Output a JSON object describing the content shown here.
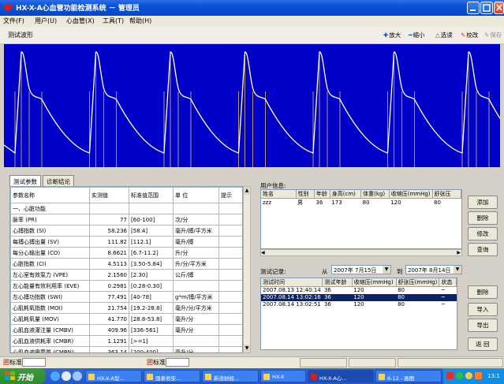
{
  "window": {
    "title": "HX-X-A心血管功能检测系统 － 管理员"
  },
  "menu": [
    "文件(F)",
    "用户(U)",
    "心血管(X)",
    "工具(T)",
    "帮助(H)"
  ],
  "toolbar": {
    "label": "测试波形",
    "zoom_in": "放大",
    "zoom_out": "缩小",
    "select": "选读",
    "calibrate": "校改",
    "save": "保存"
  },
  "colors": {
    "wave_background": "#0000c8",
    "wave_line": "#ffffff",
    "marker_line": "#ffd84a",
    "selection": "#0a246a",
    "titlebar": "#0a4fd6",
    "taskbar": "#2457ca"
  },
  "tabs": [
    "测试参数",
    "诊断结论"
  ],
  "params": {
    "headers": [
      "参数名称",
      "实测值",
      "标准值范围",
      "单 位",
      "提示"
    ],
    "rows": [
      {
        "name": "一、心脏功能",
        "value": "",
        "range": "",
        "unit": "",
        "hint": ""
      },
      {
        "name": "脉率 (PR)",
        "value": "77",
        "range": "[60-100]",
        "unit": "次/分",
        "hint": ""
      },
      {
        "name": "心搏指数 (SI)",
        "value": "58.236",
        "range": "[58.4]",
        "unit": "毫升/搏/平方米",
        "hint": ""
      },
      {
        "name": "每搏心搏出量 (SV)",
        "value": "111.82",
        "range": "[112.1]",
        "unit": "毫升/搏",
        "hint": ""
      },
      {
        "name": "每分心输出量 (CO)",
        "value": "8.6621",
        "range": "[6.7-11.2]",
        "unit": "升/分",
        "hint": ""
      },
      {
        "name": "心脏指数 (CI)",
        "value": "4.5113",
        "range": "[3.50-5.84]",
        "unit": "升/分/平方米",
        "hint": ""
      },
      {
        "name": "左心室有效泵力 (VPE)",
        "value": "2.1560",
        "range": "[2.30]",
        "unit": "公斤/搏",
        "hint": ""
      },
      {
        "name": "左心能量有效利用率 (EVE)",
        "value": "0.2981",
        "range": "[0.28-0.30]",
        "unit": "",
        "hint": ""
      },
      {
        "name": "左心搏功指数 (SWI)",
        "value": "77.491",
        "range": "[40-78]",
        "unit": "g*m/搏/平方米",
        "hint": ""
      },
      {
        "name": "心肌耗氧指数 (MOI)",
        "value": "21.754",
        "range": "[19.2-28.8]",
        "unit": "毫升/分/平方米",
        "hint": ""
      },
      {
        "name": "心肌耗氧量 (MOV)",
        "value": "41.770",
        "range": "[28.8-53.8]",
        "unit": "毫升/分",
        "hint": ""
      },
      {
        "name": "心肌血液灌注量 (CMBV)",
        "value": "409.96",
        "range": "[336-561]",
        "unit": "毫升/分",
        "hint": ""
      },
      {
        "name": "心肌血液供耗率 (CMBR)",
        "value": "1.1291",
        "range": "[>=1]",
        "unit": "",
        "hint": ""
      },
      {
        "name": "心肌血液需要量 (CMBN)",
        "value": "363.14",
        "range": "[200-400]",
        "unit": "毫升/分",
        "hint": ""
      }
    ]
  },
  "user_info": {
    "label": "用户信息:",
    "headers": [
      "姓名",
      "性别",
      "年龄",
      "身高(cm)",
      "体重(kg)",
      "收缩压(mmHg)",
      "舒张压"
    ],
    "rows": [
      [
        "zzz",
        "男",
        "36",
        "173",
        "80",
        "120",
        "80"
      ]
    ]
  },
  "records": {
    "label": "测试记录:",
    "from_label": "从",
    "from_date": "2007年 7月15日",
    "to_label": "到",
    "to_date": "2007年 8月14日",
    "headers": [
      "测试时间",
      "测试年龄",
      "收缩压(mmHg)",
      "舒张压(mmHg)",
      "状态"
    ],
    "rows": [
      {
        "time": "2007.08.13 12:40:14",
        "age": "36",
        "sys": "120",
        "dia": "80",
        "status": "~",
        "selected": false
      },
      {
        "time": "2007.08.14 13:02:16",
        "age": "36",
        "sys": "120",
        "dia": "80",
        "status": "~",
        "selected": true
      },
      {
        "time": "2007.08.14 13:02:51",
        "age": "36",
        "sys": "120",
        "dia": "80",
        "status": "~",
        "selected": false
      }
    ]
  },
  "side_buttons": {
    "add": "添加",
    "delete_user": "删除",
    "edit": "修改",
    "query": "查询",
    "delete_record": "删除",
    "import": "导入",
    "export": "导出",
    "back": "返 回"
  },
  "statusbar": {
    "ime1": "标准",
    "ime2": "标准"
  },
  "taskbar": {
    "start": "开始",
    "tasks": [
      "HX-X-A型...",
      "国泰君安...",
      "新浪财经...",
      "HX-X",
      "HX-X-A心...",
      "6-12 - 画图"
    ],
    "clock": "13:1"
  }
}
